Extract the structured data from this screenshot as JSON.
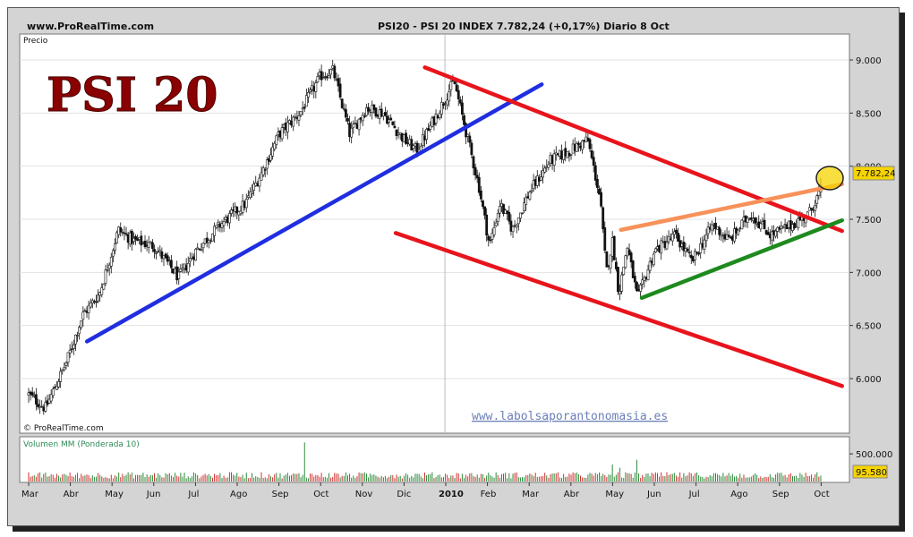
{
  "header": {
    "site": "www.ProRealTime.com",
    "title": "PSI20 - PSI 20 INDEX    7.782,24 (+0,17%)   Diario  8 Oct"
  },
  "price_panel": {
    "label": "Precio",
    "watermark": "© ProRealTime.com"
  },
  "overlay_title": "PSI 20",
  "website": "www.labolsaporantonomasia.es",
  "volume_panel": {
    "label": "Volumen MM (Ponderada 10)"
  },
  "colors": {
    "title": "#8b0000",
    "blue_line": "#1f2ee0",
    "red_channel": "#e8141c",
    "orange_line": "#f7915a",
    "green_line": "#1e8a1e",
    "price_badge": "#f5d400",
    "volume_badge": "#f5d400"
  },
  "chart_data": [
    {
      "type": "candlestick",
      "title": "PSI20 - PSI 20 INDEX",
      "last_value": "7.782,24",
      "change": "+0,17%",
      "interval": "Diario",
      "y_ticks": [
        "9.000",
        "8.500",
        "8.000",
        "7.500",
        "7.000",
        "6.500",
        "6.000"
      ],
      "ylim": [
        5650,
        9250
      ],
      "x_ticks": [
        "Mar",
        "Abr",
        "May",
        "Jun",
        "Jul",
        "Ago",
        "Sep",
        "Oct",
        "Nov",
        "Dic",
        "2010",
        "Feb",
        "Mar",
        "Abr",
        "May",
        "Jun",
        "Jul",
        "Ago",
        "Sep",
        "Oct"
      ],
      "anchors": [
        {
          "m": 0,
          "v": 5850
        },
        {
          "m": 0.4,
          "v": 5720
        },
        {
          "m": 0.9,
          "v": 6150
        },
        {
          "m": 1.3,
          "v": 6600
        },
        {
          "m": 1.7,
          "v": 6800
        },
        {
          "m": 2.15,
          "v": 7400
        },
        {
          "m": 2.5,
          "v": 7300
        },
        {
          "m": 3.0,
          "v": 7250
        },
        {
          "m": 3.6,
          "v": 6950
        },
        {
          "m": 4.0,
          "v": 7200
        },
        {
          "m": 4.6,
          "v": 7450
        },
        {
          "m": 5.2,
          "v": 7650
        },
        {
          "m": 5.6,
          "v": 7950
        },
        {
          "m": 6.0,
          "v": 8300
        },
        {
          "m": 6.5,
          "v": 8500
        },
        {
          "m": 7.0,
          "v": 8850
        },
        {
          "m": 7.3,
          "v": 8900
        },
        {
          "m": 7.7,
          "v": 8300
        },
        {
          "m": 8.1,
          "v": 8550
        },
        {
          "m": 8.5,
          "v": 8500
        },
        {
          "m": 9.0,
          "v": 8250
        },
        {
          "m": 9.3,
          "v": 8150
        },
        {
          "m": 9.6,
          "v": 8350
        },
        {
          "m": 10.0,
          "v": 8650
        },
        {
          "m": 10.2,
          "v": 8800
        },
        {
          "m": 10.5,
          "v": 8300
        },
        {
          "m": 10.8,
          "v": 7800
        },
        {
          "m": 11.05,
          "v": 7250
        },
        {
          "m": 11.3,
          "v": 7650
        },
        {
          "m": 11.6,
          "v": 7400
        },
        {
          "m": 12.0,
          "v": 7750
        },
        {
          "m": 12.5,
          "v": 8050
        },
        {
          "m": 13.0,
          "v": 8150
        },
        {
          "m": 13.4,
          "v": 8250
        },
        {
          "m": 13.7,
          "v": 7700
        },
        {
          "m": 13.85,
          "v": 7000
        },
        {
          "m": 14.0,
          "v": 7300
        },
        {
          "m": 14.15,
          "v": 6800
        },
        {
          "m": 14.35,
          "v": 7250
        },
        {
          "m": 14.6,
          "v": 6750
        },
        {
          "m": 15.0,
          "v": 7200
        },
        {
          "m": 15.5,
          "v": 7350
        },
        {
          "m": 15.9,
          "v": 7100
        },
        {
          "m": 16.4,
          "v": 7450
        },
        {
          "m": 16.8,
          "v": 7300
        },
        {
          "m": 17.3,
          "v": 7550
        },
        {
          "m": 17.8,
          "v": 7350
        },
        {
          "m": 18.3,
          "v": 7450
        },
        {
          "m": 18.7,
          "v": 7550
        },
        {
          "m": 19.0,
          "v": 7782
        }
      ],
      "trendlines": [
        {
          "name": "blue_support",
          "color": "blue_line",
          "from": {
            "m": 1.4,
            "v": 6350
          },
          "to": {
            "m": 12.3,
            "v": 8770
          }
        },
        {
          "name": "red_upper",
          "color": "red_channel",
          "from": {
            "m": 9.5,
            "v": 8930
          },
          "to": {
            "m": 19.5,
            "v": 7390
          }
        },
        {
          "name": "red_lower",
          "color": "red_channel",
          "from": {
            "m": 8.8,
            "v": 7370
          },
          "to": {
            "m": 19.5,
            "v": 5930
          }
        },
        {
          "name": "orange_resistance",
          "color": "orange_line",
          "from": {
            "m": 14.2,
            "v": 7400
          },
          "to": {
            "m": 19.5,
            "v": 7830
          }
        },
        {
          "name": "green_support",
          "color": "green_line",
          "from": {
            "m": 14.7,
            "v": 6760
          },
          "to": {
            "m": 19.5,
            "v": 7490
          }
        }
      ]
    },
    {
      "type": "bar",
      "title": "Volumen MM (Ponderada 10)",
      "y_ticks": [
        "500.000"
      ],
      "last_value": "95.580",
      "ylim": [
        0,
        800000
      ]
    }
  ]
}
